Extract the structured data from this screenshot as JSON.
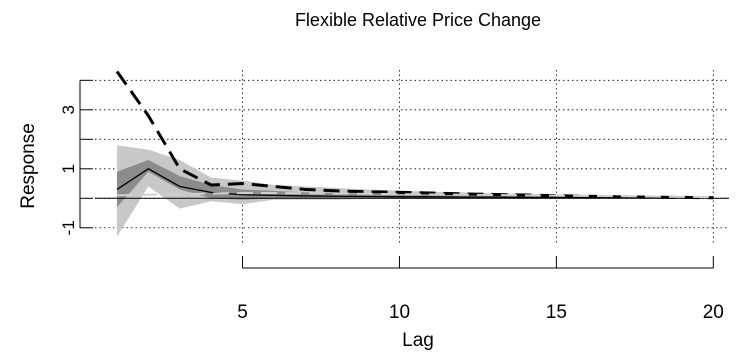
{
  "chart_data": {
    "type": "line",
    "title": "Flexible Relative Price Change",
    "xlabel": "Lag",
    "ylabel": "Response",
    "xlim": [
      0.3,
      20.5
    ],
    "ylim": [
      -1.55,
      4.35
    ],
    "x_ticks": [
      5,
      10,
      15,
      20
    ],
    "x_tick_labels": [
      "5",
      "10",
      "15",
      "20"
    ],
    "y_ticks": [
      -1,
      1,
      3
    ],
    "y_tick_labels": [
      "-1",
      "1",
      "3"
    ],
    "y_minor_ticks": [
      0,
      2,
      4
    ],
    "grid": true,
    "zero_line": 0,
    "x": [
      1,
      2,
      3,
      4,
      5,
      6,
      7,
      8,
      9,
      10,
      11,
      12,
      13,
      14,
      15,
      16,
      17,
      18,
      19,
      20
    ],
    "bands": [
      {
        "lower": [
          -1.3,
          0.4,
          -0.35,
          -0.1,
          -0.2,
          -0.05,
          -0.05,
          -0.05,
          -0.02,
          -0.02,
          -0.02,
          -0.02,
          -0.01,
          -0.01,
          -0.01,
          -0.01,
          0.0,
          0.0,
          0.0,
          0.0
        ],
        "upper": [
          1.8,
          1.65,
          1.3,
          0.7,
          0.6,
          0.45,
          0.4,
          0.35,
          0.3,
          0.26,
          0.22,
          0.2,
          0.17,
          0.15,
          0.13,
          0.11,
          0.09,
          0.08,
          0.07,
          0.06
        ],
        "color": "#c8c8c8"
      },
      {
        "lower": [
          -0.3,
          0.9,
          0.3,
          0.0,
          -0.05,
          0.0,
          0.0,
          0.0,
          0.0,
          0.0,
          0.0,
          0.0,
          0.0,
          0.0,
          0.0,
          0.0,
          0.0,
          0.0,
          0.0,
          0.0
        ],
        "upper": [
          0.9,
          1.3,
          0.75,
          0.45,
          0.3,
          0.25,
          0.2,
          0.18,
          0.15,
          0.13,
          0.11,
          0.1,
          0.09,
          0.08,
          0.07,
          0.06,
          0.05,
          0.04,
          0.04,
          0.03
        ],
        "color": "#8c8c8c"
      }
    ],
    "series": [
      {
        "values": [
          0.3,
          1.0,
          0.4,
          0.2,
          0.12,
          0.1,
          0.08,
          0.07,
          0.06,
          0.05,
          0.05,
          0.04,
          0.04,
          0.03,
          0.03,
          0.02,
          0.02,
          0.02,
          0.02,
          0.02
        ],
        "style": "solid",
        "color": "#000000"
      },
      {
        "values": [
          4.3,
          2.8,
          1.0,
          0.45,
          0.5,
          0.4,
          0.3,
          0.25,
          0.22,
          0.2,
          0.18,
          0.15,
          0.13,
          0.11,
          0.09,
          0.07,
          0.05,
          0.04,
          0.03,
          0.02
        ],
        "style": "dashed",
        "color": "#000000"
      },
      {
        "values": [
          0.1,
          0.12,
          0.14,
          0.16,
          0.18,
          0.18,
          0.17,
          0.16,
          0.15,
          0.14,
          0.13,
          0.12,
          0.11,
          0.1,
          0.09,
          0.08,
          0.07,
          0.06,
          0.05,
          0.04
        ],
        "style": "dashed",
        "color": "#d0d0d0"
      }
    ]
  }
}
